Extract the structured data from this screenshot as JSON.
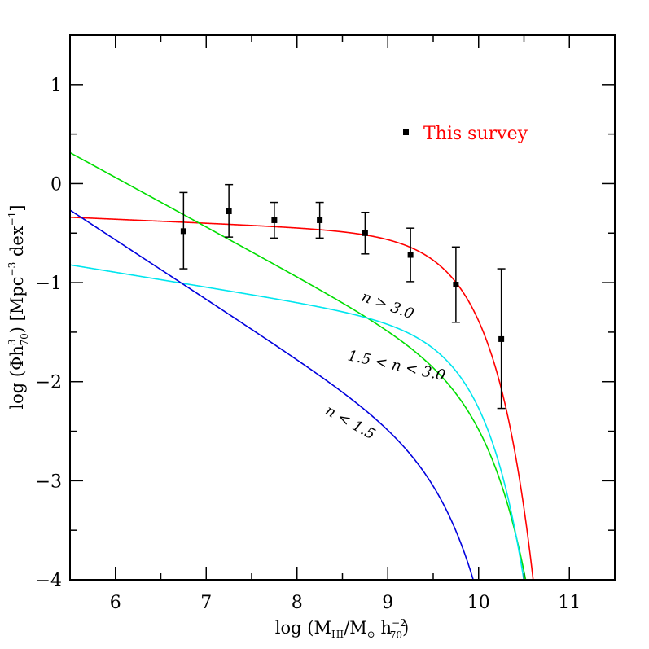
{
  "chart_data": {
    "type": "line",
    "xlabel": {
      "prefix": "log (M",
      "sub1": "HI",
      "mid": "/M",
      "sun": "⊙",
      "sp": " h",
      "sup2": "−2",
      "sub2": "70",
      "suffix": ")"
    },
    "ylabel": {
      "prefix": "log (Φh",
      "sup1": "3",
      "sub1": "70",
      "mid": ") [Mpc",
      "sup2": "−3",
      "mid2": " dex",
      "sup3": "−1",
      "suffix": "]"
    },
    "xlim": [
      5.5,
      11.5
    ],
    "ylim": [
      -4,
      1.5
    ],
    "x_ticks": [
      6,
      7,
      8,
      9,
      10,
      11
    ],
    "x_tick_labels": [
      "6",
      "7",
      "8",
      "9",
      "10",
      "11"
    ],
    "y_ticks": [
      -4,
      -3,
      -2,
      -1,
      0,
      1
    ],
    "y_tick_labels": [
      "−4",
      "−3",
      "−2",
      "−1",
      "0",
      "1"
    ],
    "series": [
      {
        "name": "This survey",
        "kind": "points",
        "color": "#000000",
        "x": [
          6.75,
          7.25,
          7.75,
          8.25,
          8.75,
          9.25,
          9.75,
          10.25
        ],
        "y": [
          -0.48,
          -0.28,
          -0.37,
          -0.37,
          -0.5,
          -0.72,
          -1.02,
          -1.57
        ],
        "yerr_low": [
          0.38,
          0.26,
          0.18,
          0.18,
          0.21,
          0.27,
          0.38,
          0.7
        ],
        "yerr_high": [
          0.39,
          0.27,
          0.18,
          0.18,
          0.21,
          0.27,
          0.38,
          0.71
        ]
      },
      {
        "name": "",
        "kind": "schechter",
        "color": "#ff0000",
        "logPhiStar": -0.87,
        "alpha": -1.04,
        "logMstar": 9.7
      },
      {
        "name": "n > 3.0",
        "kind": "schechter",
        "color": "#00dd00",
        "logPhiStar": -2.25,
        "alpha": -1.5,
        "logMstar": 9.9
      },
      {
        "name": "1.5 < n < 3.0",
        "kind": "schechter",
        "color": "#00e5ee",
        "logPhiStar": -1.82,
        "alpha": -1.15,
        "logMstar": 9.75
      },
      {
        "name": "n < 1.5",
        "kind": "schechter",
        "color": "#0000dd",
        "logPhiStar": -3.06,
        "alpha": -1.6,
        "logMstar": 9.55
      }
    ],
    "curve_labels": [
      {
        "text": "n > 3.0",
        "x": 8.7,
        "y": -1.18,
        "rotate": 20
      },
      {
        "text": "1.5 < n < 3.0",
        "x": 8.55,
        "y": -1.78,
        "rotate": 12
      },
      {
        "text": "n < 1.5",
        "x": 8.3,
        "y": -2.32,
        "rotate": 29
      }
    ],
    "legend": {
      "text": "This survey",
      "color": "#ff0000",
      "position": "top-right"
    },
    "grid": false
  }
}
